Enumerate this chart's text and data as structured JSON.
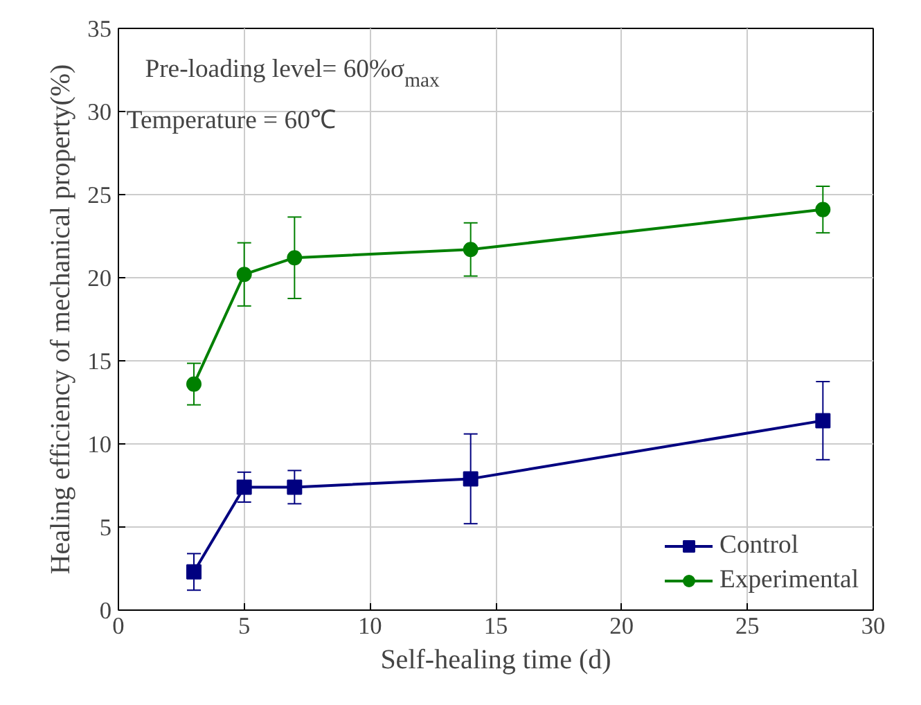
{
  "chart_data": {
    "type": "line",
    "xlabel": "Self-healing time (d)",
    "ylabel": "Healing efficiency of mechanical property(%)",
    "x": [
      3,
      5,
      7,
      14,
      28
    ],
    "series": [
      {
        "name": "Control",
        "color": "#000080",
        "marker": "square",
        "values": [
          2.3,
          7.4,
          7.4,
          7.9,
          11.4
        ],
        "errors": [
          1.1,
          0.9,
          1.0,
          2.7,
          2.35
        ]
      },
      {
        "name": "Experimental",
        "color": "#008000",
        "marker": "circle",
        "values": [
          13.6,
          20.2,
          21.2,
          21.7,
          24.1
        ],
        "errors": [
          1.25,
          1.9,
          2.45,
          1.6,
          1.4
        ]
      }
    ],
    "xlim": [
      0,
      30
    ],
    "xticks": [
      0,
      5,
      10,
      15,
      20,
      25,
      30
    ],
    "ylim": [
      0,
      35
    ],
    "yticks": [
      0,
      5,
      10,
      15,
      20,
      25,
      30,
      35
    ],
    "grid": true,
    "legend": "bottom right",
    "line_style": "solid",
    "annotations": [
      "Pre-loading level= 60%σ$_{max}$",
      "Temperature = 60℃"
    ]
  }
}
